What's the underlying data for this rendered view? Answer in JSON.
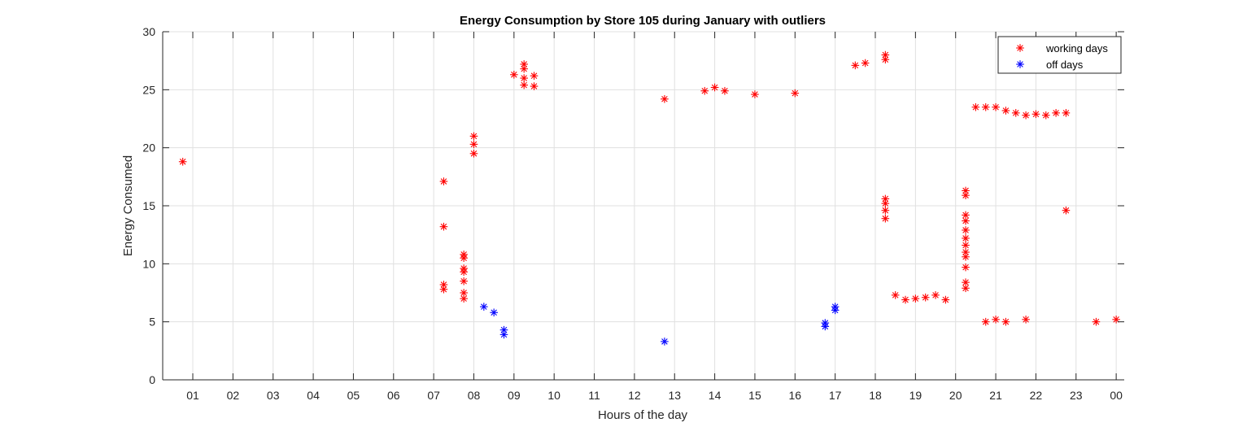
{
  "chart_data": {
    "type": "scatter",
    "title": "Energy Consumption by Store 105 during January with outliers",
    "xlabel": "Hours of the day",
    "ylabel": "Energy Consumed",
    "xlim": [
      0.25,
      24.2
    ],
    "ylim": [
      0,
      30
    ],
    "xticks": [
      {
        "value": 1,
        "label": "01"
      },
      {
        "value": 2,
        "label": "02"
      },
      {
        "value": 3,
        "label": "03"
      },
      {
        "value": 4,
        "label": "04"
      },
      {
        "value": 5,
        "label": "05"
      },
      {
        "value": 6,
        "label": "06"
      },
      {
        "value": 7,
        "label": "07"
      },
      {
        "value": 8,
        "label": "08"
      },
      {
        "value": 9,
        "label": "09"
      },
      {
        "value": 10,
        "label": "10"
      },
      {
        "value": 11,
        "label": "11"
      },
      {
        "value": 12,
        "label": "12"
      },
      {
        "value": 13,
        "label": "13"
      },
      {
        "value": 14,
        "label": "14"
      },
      {
        "value": 15,
        "label": "15"
      },
      {
        "value": 16,
        "label": "16"
      },
      {
        "value": 17,
        "label": "17"
      },
      {
        "value": 18,
        "label": "18"
      },
      {
        "value": 19,
        "label": "19"
      },
      {
        "value": 20,
        "label": "20"
      },
      {
        "value": 21,
        "label": "21"
      },
      {
        "value": 22,
        "label": "22"
      },
      {
        "value": 23,
        "label": "23"
      },
      {
        "value": 24,
        "label": "00"
      }
    ],
    "yticks": [
      0,
      5,
      10,
      15,
      20,
      25,
      30
    ],
    "grid": true,
    "legend": "top-right",
    "series": [
      {
        "name": "working days",
        "color": "#ff0000",
        "marker": "asterisk",
        "points": [
          [
            0.75,
            18.8
          ],
          [
            7.25,
            17.1
          ],
          [
            7.25,
            13.2
          ],
          [
            7.25,
            8.2
          ],
          [
            7.25,
            7.8
          ],
          [
            7.75,
            10.8
          ],
          [
            7.75,
            10.5
          ],
          [
            7.75,
            9.6
          ],
          [
            7.75,
            9.3
          ],
          [
            7.75,
            8.5
          ],
          [
            7.75,
            7.5
          ],
          [
            7.75,
            7.0
          ],
          [
            8.0,
            21.0
          ],
          [
            8.0,
            20.3
          ],
          [
            8.0,
            19.5
          ],
          [
            9.0,
            26.3
          ],
          [
            9.25,
            27.2
          ],
          [
            9.25,
            26.8
          ],
          [
            9.25,
            26.0
          ],
          [
            9.25,
            25.4
          ],
          [
            9.5,
            26.2
          ],
          [
            9.5,
            25.3
          ],
          [
            13.75,
            24.9
          ],
          [
            14.0,
            25.2
          ],
          [
            14.25,
            24.9
          ],
          [
            12.75,
            24.2
          ],
          [
            15.0,
            24.6
          ],
          [
            16.0,
            24.7
          ],
          [
            17.5,
            27.1
          ],
          [
            17.75,
            27.3
          ],
          [
            18.25,
            28.0
          ],
          [
            18.25,
            27.6
          ],
          [
            18.25,
            15.6
          ],
          [
            18.25,
            15.2
          ],
          [
            18.25,
            14.6
          ],
          [
            18.25,
            13.9
          ],
          [
            20.25,
            16.3
          ],
          [
            20.25,
            15.9
          ],
          [
            20.25,
            14.2
          ],
          [
            20.25,
            13.7
          ],
          [
            20.25,
            12.9
          ],
          [
            20.25,
            12.2
          ],
          [
            20.25,
            11.6
          ],
          [
            20.25,
            11.0
          ],
          [
            20.25,
            10.6
          ],
          [
            20.25,
            9.7
          ],
          [
            20.25,
            8.4
          ],
          [
            20.25,
            7.9
          ],
          [
            20.5,
            23.5
          ],
          [
            20.75,
            23.5
          ],
          [
            21.0,
            23.5
          ],
          [
            21.25,
            23.2
          ],
          [
            21.5,
            23.0
          ],
          [
            21.75,
            22.8
          ],
          [
            22.0,
            22.9
          ],
          [
            22.25,
            22.8
          ],
          [
            22.5,
            23.0
          ],
          [
            22.75,
            23.0
          ],
          [
            22.75,
            14.6
          ],
          [
            18.5,
            7.3
          ],
          [
            18.75,
            6.9
          ],
          [
            19.0,
            7.0
          ],
          [
            19.25,
            7.1
          ],
          [
            19.5,
            7.3
          ],
          [
            19.75,
            6.9
          ],
          [
            20.75,
            5.0
          ],
          [
            21.0,
            5.2
          ],
          [
            21.25,
            5.0
          ],
          [
            21.75,
            5.2
          ],
          [
            23.5,
            5.0
          ],
          [
            24.0,
            5.2
          ]
        ]
      },
      {
        "name": "off days",
        "color": "#0000ff",
        "marker": "asterisk",
        "points": [
          [
            8.25,
            6.3
          ],
          [
            8.5,
            5.8
          ],
          [
            8.75,
            4.3
          ],
          [
            8.75,
            3.9
          ],
          [
            12.75,
            3.3
          ],
          [
            16.75,
            4.9
          ],
          [
            16.75,
            4.6
          ],
          [
            17.0,
            6.3
          ],
          [
            17.0,
            6.0
          ]
        ]
      }
    ]
  }
}
